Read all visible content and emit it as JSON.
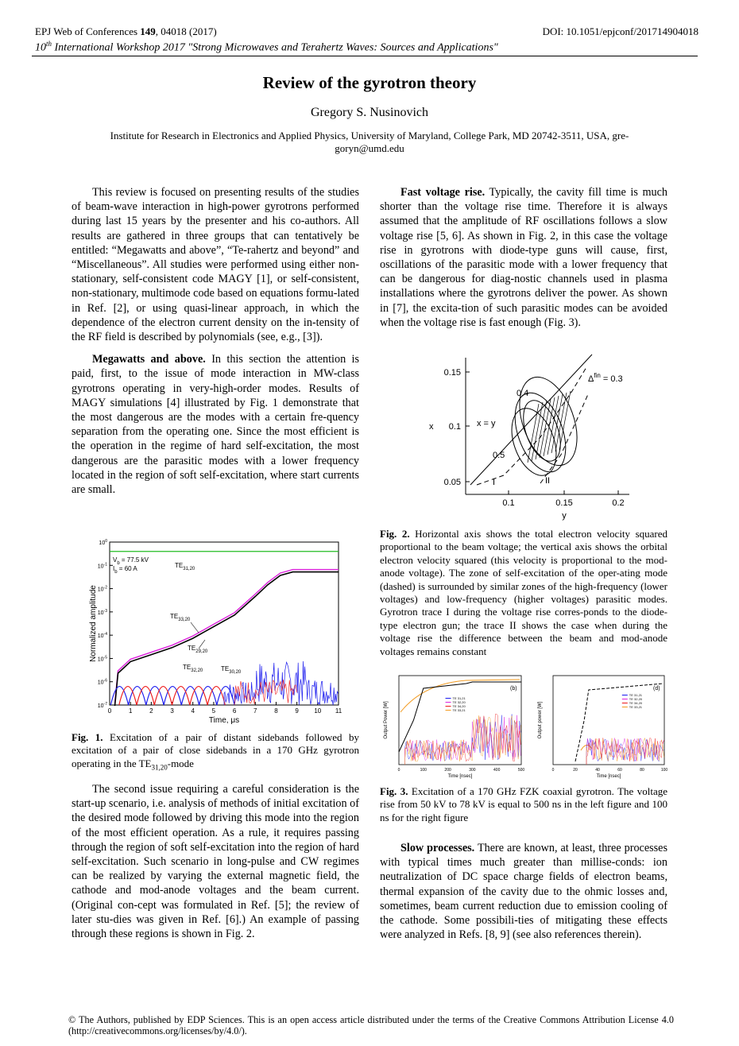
{
  "header": {
    "journal_prefix": "EPJ Web of Conferences ",
    "volume": "149",
    "journal_suffix": ", 04018 (2017)",
    "doi": "DOI: 10.1051/epjconf/201714904018",
    "workshop_ord": "10",
    "workshop_sup": "th",
    "workshop_rest": " International Workshop 2017 \"Strong Microwaves and Terahertz Waves: Sources and Applications\""
  },
  "title": "Review of the gyrotron theory",
  "author": "Gregory S. Nusinovich",
  "affiliation": "Institute for Research in Electronics and Applied Physics, University of Maryland, College Park, MD 20742-3511, USA, gre-goryn@umd.edu",
  "left_col": {
    "p1": "This review is focused on presenting results of the studies of beam-wave interaction in high-power gyrotrons performed during last 15 years by the presenter and his co-authors. All results are gathered in three groups that can tentatively be entitled: “Megawatts and above”, “Te-rahertz and beyond” and “Miscellaneous”. All studies were performed using either non-stationary, self-consistent code MAGY [1], or self-consistent, non-stationary, multimode code based on equations formu-lated in Ref. [2], or using quasi-linear approach, in which the dependence of the electron current density on the in-tensity of the RF field is described by polynomials (see, e.g., [3]).",
    "p2_head": "Megawatts and above.",
    "p2": " In this section the attention is paid, first, to the issue of mode interaction in MW-class gyrotrons operating in very-high-order modes. Results of MAGY simulations [4] illustrated by Fig. 1 demonstrate that the most dangerous are the modes with a certain fre-quency separation from the operating one. Since the most efficient is the operation in the regime of hard self-excitation, the most dangerous are the parasitic modes with a lower frequency located in the region of soft self-excitation, where start currents are small.",
    "fig1_label": "Fig. 1.",
    "fig1_caption": " Excitation of a pair of distant sidebands followed by excitation of a pair of close sidebands in a 170 GHz gyrotron operating in the TE",
    "fig1_sub": "31,20",
    "fig1_tail": "-mode",
    "p3": "The second issue requiring a careful consideration is the start-up scenario, i.e. analysis of methods of initial excitation of the desired mode followed by driving this mode into the region of the most efficient operation. As a rule, it requires passing through the region of soft self-excitation into the region of hard self-excitation. Such scenario in long-pulse and CW regimes can be realized by varying the external magnetic field, the cathode and mod-anode voltages and the beam current. (Original con-cept was formulated in Ref. [5]; the review of later stu-dies was given in Ref. [6].) An example of passing through these regions is shown in Fig. 2."
  },
  "right_col": {
    "p1_head": "Fast voltage rise.",
    "p1": " Typically, the cavity fill time is much shorter than the voltage rise time. Therefore it is always assumed that the amplitude of RF oscillations follows a slow voltage rise [5, 6]. As shown in Fig. 2, in this case the voltage rise in gyrotrons with diode-type guns will cause, first, oscillations of the parasitic mode with a lower frequency that can be dangerous for diag-nostic channels used in plasma installations where the gyrotrons deliver the power. As shown in [7], the excita-tion of such parasitic modes can be avoided when the voltage rise is fast enough (Fig. 3).",
    "fig2_label": "Fig. 2.",
    "fig2_caption": " Horizontal axis shows the total electron velocity squared proportional to the beam voltage; the vertical axis shows the orbital electron velocity squared (this velocity is proportional to the mod-anode voltage). The zone of self-excitation of the oper-ating mode (dashed) is surrounded by similar zones of the high-frequency (lower voltages) and low-frequency (higher voltages) parasitic modes. Gyrotron trace I during the voltage rise corres-ponds to the diode-type electron gun; the trace II shows the case when during the voltage rise the difference between the beam and mod-anode voltages remains constant",
    "fig3_label": "Fig. 3.",
    "fig3_caption": " Excitation of a 170 GHz FZK coaxial gyrotron. The voltage rise from 50 kV to 78 kV is equal to 500 ns in the left figure and 100 ns for the right figure",
    "p2_head": "Slow processes.",
    "p2": " There are known, at least, three processes with typical times much greater than millise-conds: ion neutralization of DC space charge fields of electron beams, thermal expansion of the cavity due to the ohmic losses and, sometimes, beam current reduction due to emission cooling of the cathode. Some possibili-ties of mitigating these effects were analyzed in Refs. [8, 9] (see also references therein)."
  },
  "fig1": {
    "ylabel": "Normalized amplitude",
    "xlabel": "Time, μs",
    "xticks": [
      "0",
      "1",
      "2",
      "3",
      "4",
      "5",
      "6",
      "7",
      "8",
      "9",
      "10",
      "11"
    ],
    "ytick_base": "10",
    "ytick_exps": [
      "0",
      "-1",
      "-2",
      "-3",
      "-4",
      "-5",
      "-6",
      "-7"
    ],
    "legend_vb": "V",
    "legend_vb_sub": "b",
    "legend_vb_val": " = 77.5 kV",
    "legend_ib": "I",
    "legend_ib_sub": "b",
    "legend_ib_val": " = 60  A",
    "labels": [
      {
        "base": "TE",
        "sub": "31,20"
      },
      {
        "base": "TE",
        "sub": "33,20"
      },
      {
        "base": "TE",
        "sub": "29,20"
      },
      {
        "base": "TE",
        "sub": "32,20"
      },
      {
        "base": "TE",
        "sub": "30,20"
      }
    ]
  },
  "fig2": {
    "ylabel": "x",
    "xlabel": "y",
    "yticks": [
      "0.15",
      "0.1",
      "0.05"
    ],
    "xticks": [
      "0.1",
      "0.15",
      "0.2"
    ],
    "labels": {
      "delta": "Δ",
      "delta_sup": "fin",
      "delta_val": " = 0.3",
      "a04": "0.4",
      "a05": "0.5",
      "xy": "x = y",
      "tI": "I",
      "tII": "II"
    }
  },
  "fig3": {
    "left": {
      "ylabel": "Output Power [W]",
      "xlabel": "Time [nsec]",
      "xticks": [
        "0",
        "100",
        "200",
        "300",
        "400",
        "500"
      ],
      "panel": "(b)",
      "legend": [
        "TE 31,21",
        "TE 32,20",
        "TE 34,20",
        "TE 33,21"
      ]
    },
    "right": {
      "ylabel": "Output power [W]",
      "xlabel": "Time [nsec]",
      "xticks": [
        "0",
        "20",
        "40",
        "60",
        "80",
        "100"
      ],
      "panel": "(d)",
      "legend": [
        "TE 31,21",
        "TE 32,20",
        "TE 34,20",
        "TE 33,21"
      ]
    }
  },
  "footer": "© The Authors, published by EDP Sciences. This is an open access article distributed under the terms of the Creative Commons Attribution License 4.0 (http://creativecommons.org/licenses/by/4.0/).",
  "colors": {
    "green": "#22bb22",
    "magenta": "#dd22dd",
    "blue": "#1a1aee",
    "red": "#ee1a1a",
    "orange": "#f39a1e"
  }
}
